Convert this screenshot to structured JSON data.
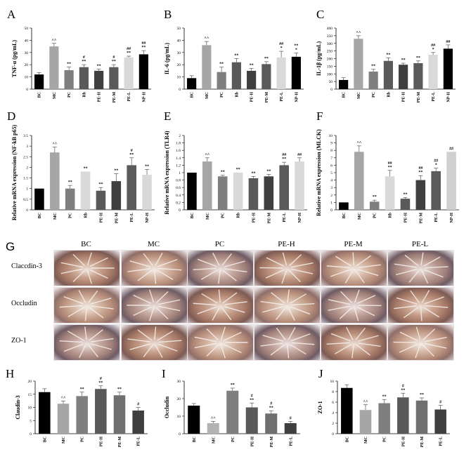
{
  "panels_top": [
    "A",
    "B",
    "C",
    "D",
    "E",
    "F"
  ],
  "chart_data": [
    {
      "letter": "A",
      "type": "bar",
      "ylabel": "TNF-α (pg/mL)",
      "ylim": [
        0,
        50
      ],
      "yticks": [
        0,
        10,
        20,
        30,
        40,
        50
      ],
      "categories": [
        "BC",
        "MC",
        "PC",
        "Rb",
        "PE-H",
        "PE-M",
        "PE-L",
        "NP-H"
      ],
      "values": [
        12,
        35,
        15.5,
        18,
        15,
        18,
        26,
        28.5
      ],
      "errors": [
        1.5,
        2.5,
        2.5,
        2,
        1.5,
        2,
        1,
        3
      ],
      "annotations": [
        "",
        "^^",
        "**",
        "#\n**",
        "**",
        "#\n**",
        "##\n**",
        "##\n**"
      ]
    },
    {
      "letter": "B",
      "type": "bar",
      "ylabel": "IL-6 (pg/mL)",
      "ylim": [
        0,
        50
      ],
      "yticks": [
        0,
        10,
        20,
        30,
        40,
        50
      ],
      "categories": [
        "BC",
        "MC",
        "PC",
        "Rb",
        "PE-H",
        "PE-M",
        "PE-L",
        "NP-H"
      ],
      "values": [
        9,
        36,
        14,
        22,
        15,
        20.5,
        26,
        26.5
      ],
      "errors": [
        2,
        3,
        4,
        3,
        2,
        2,
        5,
        3
      ],
      "annotations": [
        "",
        "^^",
        "**",
        "**",
        "**",
        "**",
        "##\n*",
        "**\n*"
      ]
    },
    {
      "letter": "C",
      "type": "bar",
      "ylabel": "IL-1β (pg/mL)",
      "ylim": [
        0,
        400
      ],
      "yticks": [
        0,
        50,
        100,
        150,
        200,
        250,
        300,
        350,
        400
      ],
      "categories": [
        "BC",
        "MC",
        "PC",
        "Rb",
        "PE-H",
        "PE-M",
        "PE-L",
        "NP-H"
      ],
      "values": [
        60,
        330,
        115,
        185,
        160,
        170,
        225,
        265
      ],
      "errors": [
        15,
        20,
        15,
        20,
        10,
        15,
        15,
        25
      ],
      "annotations": [
        "",
        "^^",
        "**",
        "**",
        "**",
        "**",
        "##\n*",
        "##"
      ]
    },
    {
      "letter": "D",
      "type": "bar",
      "ylabel": "Relative mRNA expression (NF-kB p65)",
      "ylim": [
        0,
        3.5
      ],
      "yticks": [
        0,
        0.5,
        1,
        1.5,
        2,
        2.5,
        3,
        3.5
      ],
      "categories": [
        "BC",
        "MC",
        "PC",
        "Rb",
        "PE-H",
        "PE-M",
        "PE-L",
        "NP-H"
      ],
      "values": [
        1,
        2.7,
        1,
        1.8,
        0.9,
        1.35,
        2.1,
        1.65
      ],
      "errors": [
        0,
        0.25,
        0.15,
        0,
        0.15,
        0.35,
        0.35,
        0.25
      ],
      "annotations": [
        "",
        "^^",
        "**",
        "**",
        "**",
        "**",
        "#\n**",
        "**"
      ]
    },
    {
      "letter": "E",
      "type": "bar",
      "ylabel": "Relative mRNA expression (TLR4)",
      "ylim": [
        0,
        2
      ],
      "yticks": [
        0,
        0.2,
        0.4,
        0.6,
        0.8,
        1,
        1.2,
        1.4,
        1.6,
        1.8,
        2
      ],
      "categories": [
        "BC",
        "MC",
        "PC",
        "Rb",
        "PE-H",
        "PE-M",
        "PE-L",
        "NP-H"
      ],
      "values": [
        1,
        1.3,
        0.9,
        1,
        0.85,
        0.9,
        1.2,
        1.3
      ],
      "errors": [
        0,
        0.1,
        0.03,
        0,
        0.05,
        0.05,
        0.08,
        0.1
      ],
      "annotations": [
        "",
        "^^",
        "**",
        "**",
        "**",
        "**",
        "##\n**",
        "##"
      ]
    },
    {
      "letter": "F",
      "type": "bar",
      "ylabel": "Relative mRNA expression (MLCK)",
      "ylim": [
        0,
        10
      ],
      "yticks": [
        0,
        1,
        2,
        3,
        4,
        5,
        6,
        7,
        8,
        9,
        10
      ],
      "categories": [
        "BC",
        "MC",
        "PC",
        "Rb",
        "PE-H",
        "PE-M",
        "PE-L",
        "NP-H"
      ],
      "values": [
        1,
        7.8,
        1.1,
        4.5,
        1.5,
        4,
        5.2,
        7.8
      ],
      "errors": [
        0,
        0.8,
        0.2,
        0.8,
        0.15,
        0.6,
        0.4,
        0
      ],
      "annotations": [
        "",
        "^^",
        "**",
        "##\n**",
        "**",
        "##\n**",
        "##\n*",
        "##"
      ]
    },
    {
      "letter": "H",
      "type": "bar",
      "ylabel": "Claudin-3",
      "ylim": [
        0,
        20
      ],
      "yticks": [
        0,
        5,
        10,
        15,
        20
      ],
      "categories": [
        "BC",
        "MC",
        "PC",
        "PE-H",
        "PE-M",
        "PE-L"
      ],
      "values": [
        15.8,
        11.4,
        14.3,
        17,
        14.6,
        8.8
      ],
      "errors": [
        1.3,
        1,
        1.5,
        1.2,
        1.2,
        1.2
      ],
      "annotations": [
        "",
        "^^",
        "**",
        "#\n**",
        "**",
        "#"
      ]
    },
    {
      "letter": "I",
      "type": "bar",
      "ylabel": "Occludin",
      "ylim": [
        0,
        30
      ],
      "yticks": [
        0,
        10,
        20,
        30
      ],
      "categories": [
        "BC",
        "MC",
        "PC",
        "PE-H",
        "PE-M",
        "PE-L"
      ],
      "values": [
        16,
        6,
        24.5,
        15,
        11.5,
        6
      ],
      "errors": [
        1.2,
        1,
        1.5,
        2.5,
        1.5,
        1
      ],
      "annotations": [
        "",
        "^^",
        "**",
        "#\n**",
        "#\n**",
        "#"
      ]
    },
    {
      "letter": "J",
      "type": "bar",
      "ylabel": "ZO-1",
      "ylim": [
        0,
        10
      ],
      "yticks": [
        0,
        2,
        4,
        6,
        8,
        10
      ],
      "categories": [
        "BC",
        "MC",
        "PC",
        "PE-H",
        "PE-M",
        "PE-L"
      ],
      "values": [
        8.7,
        4.5,
        5.8,
        6.9,
        6.3,
        4.6
      ],
      "errors": [
        0.6,
        1,
        0.7,
        0.8,
        0.5,
        0.8
      ],
      "annotations": [
        "",
        "^^",
        "**",
        "#\n**",
        "**",
        "#"
      ]
    }
  ],
  "figure_g": {
    "letter": "G",
    "columns": [
      "BC",
      "MC",
      "PC",
      "PE-H",
      "PE-M",
      "PE-L"
    ],
    "rows": [
      "Claccdin-3",
      "Occludin",
      "ZO-1"
    ]
  }
}
